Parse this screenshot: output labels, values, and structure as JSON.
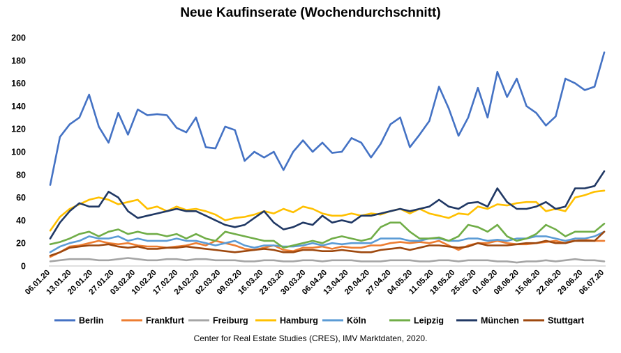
{
  "chart_data": {
    "type": "line",
    "title": "Neue Kaufinserate (Wochendurchschnitt)",
    "xlabel": "",
    "ylabel": "",
    "ylim": [
      0,
      200
    ],
    "yticks": [
      0,
      20,
      40,
      60,
      80,
      100,
      120,
      140,
      160,
      180,
      200
    ],
    "grid": false,
    "legend_position": "bottom",
    "source": "Center for Real Estate Studies (CRES), IMV Marktdaten, 2020.",
    "x_tick_labels": [
      "06.01.20",
      "13.01.20",
      "20.01.20",
      "27.01.20",
      "03.02.20",
      "10.02.20",
      "17.02.20",
      "24.02.20",
      "02.03.20",
      "09.03.20",
      "16.03.20",
      "23.03.20",
      "30.03.20",
      "06.04.20",
      "13.04.20",
      "20.04.20",
      "27.04.20",
      "04.05.20",
      "11.05.20",
      "18.05.20",
      "25.05.20",
      "01.06.20",
      "08.06.20",
      "15.06.20",
      "22.06.20",
      "29.06.20",
      "06.07.20"
    ],
    "series": [
      {
        "name": "Berlin",
        "color": "#4472C4",
        "values": [
          71,
          113,
          124,
          130,
          150,
          122,
          108,
          134,
          115,
          137,
          132,
          133,
          132,
          121,
          117,
          130,
          104,
          103,
          122,
          119,
          92,
          100,
          95,
          100,
          84,
          100,
          110,
          100,
          108,
          99,
          100,
          112,
          108,
          95,
          107,
          124,
          130,
          104,
          115,
          127,
          157,
          138,
          114,
          130,
          156,
          130,
          170,
          148,
          164,
          140,
          134,
          123,
          131,
          164,
          160,
          154,
          157,
          187
        ]
      },
      {
        "name": "Frankfurt",
        "color": "#ED7D31",
        "values": [
          8,
          12,
          17,
          18,
          20,
          22,
          20,
          19,
          20,
          18,
          17,
          17,
          16,
          17,
          18,
          20,
          18,
          22,
          20,
          18,
          15,
          14,
          16,
          18,
          14,
          13,
          16,
          16,
          17,
          15,
          17,
          16,
          16,
          18,
          18,
          20,
          21,
          20,
          21,
          20,
          22,
          18,
          14,
          18,
          20,
          20,
          22,
          20,
          19,
          19,
          20,
          21,
          22,
          20,
          24,
          23,
          22,
          22
        ]
      },
      {
        "name": "Freiburg",
        "color": "#A5A5A5",
        "values": [
          4,
          5,
          6,
          6,
          6,
          5,
          5,
          6,
          7,
          6,
          5,
          5,
          6,
          6,
          5,
          6,
          6,
          5,
          5,
          5,
          4,
          4,
          5,
          5,
          4,
          4,
          5,
          5,
          4,
          5,
          5,
          5,
          4,
          4,
          4,
          5,
          5,
          5,
          4,
          4,
          5,
          5,
          4,
          5,
          5,
          5,
          4,
          4,
          3,
          4,
          4,
          5,
          4,
          5,
          6,
          5,
          5,
          4
        ]
      },
      {
        "name": "Hamburg",
        "color": "#FFC000",
        "values": [
          31,
          43,
          50,
          54,
          58,
          60,
          58,
          54,
          56,
          58,
          50,
          52,
          48,
          52,
          49,
          50,
          48,
          45,
          40,
          42,
          43,
          45,
          48,
          46,
          50,
          47,
          52,
          50,
          46,
          44,
          44,
          46,
          44,
          46,
          45,
          48,
          50,
          46,
          50,
          46,
          44,
          42,
          46,
          45,
          52,
          50,
          54,
          53,
          55,
          56,
          56,
          48,
          50,
          48,
          60,
          62,
          65,
          66
        ]
      },
      {
        "name": "Köln",
        "color": "#5B9BD5",
        "values": [
          12,
          17,
          20,
          22,
          26,
          24,
          24,
          26,
          22,
          24,
          22,
          22,
          22,
          24,
          22,
          22,
          20,
          18,
          20,
          22,
          18,
          16,
          18,
          18,
          17,
          17,
          18,
          20,
          18,
          20,
          19,
          20,
          20,
          20,
          24,
          24,
          24,
          22,
          22,
          24,
          24,
          22,
          22,
          24,
          24,
          22,
          23,
          22,
          24,
          24,
          26,
          26,
          24,
          22,
          24,
          24,
          26,
          30
        ]
      },
      {
        "name": "Leipzig",
        "color": "#70AD47",
        "values": [
          19,
          21,
          24,
          28,
          30,
          26,
          30,
          32,
          28,
          30,
          28,
          28,
          26,
          28,
          24,
          28,
          24,
          22,
          30,
          28,
          26,
          24,
          22,
          22,
          16,
          18,
          20,
          22,
          20,
          24,
          26,
          24,
          22,
          24,
          34,
          38,
          38,
          30,
          24,
          24,
          25,
          22,
          26,
          36,
          34,
          30,
          36,
          26,
          22,
          24,
          28,
          36,
          32,
          26,
          30,
          30,
          30,
          37
        ]
      },
      {
        "name": "München",
        "color": "#203864",
        "values": [
          24,
          38,
          48,
          55,
          52,
          52,
          65,
          60,
          48,
          42,
          44,
          46,
          48,
          50,
          48,
          48,
          44,
          40,
          36,
          34,
          36,
          42,
          48,
          38,
          32,
          34,
          38,
          36,
          44,
          38,
          40,
          38,
          44,
          44,
          46,
          48,
          50,
          48,
          50,
          52,
          58,
          52,
          50,
          55,
          56,
          52,
          68,
          56,
          50,
          50,
          52,
          56,
          50,
          52,
          68,
          68,
          70,
          83
        ]
      },
      {
        "name": "Stuttgart",
        "color": "#9E480E",
        "values": [
          9,
          12,
          16,
          17,
          18,
          18,
          19,
          17,
          16,
          17,
          15,
          15,
          16,
          16,
          17,
          16,
          15,
          14,
          13,
          12,
          13,
          14,
          15,
          14,
          12,
          12,
          14,
          14,
          13,
          13,
          14,
          13,
          12,
          12,
          14,
          15,
          16,
          14,
          16,
          18,
          18,
          17,
          16,
          17,
          20,
          18,
          18,
          18,
          19,
          20,
          20,
          22,
          20,
          20,
          22,
          22,
          22,
          30
        ]
      }
    ]
  }
}
